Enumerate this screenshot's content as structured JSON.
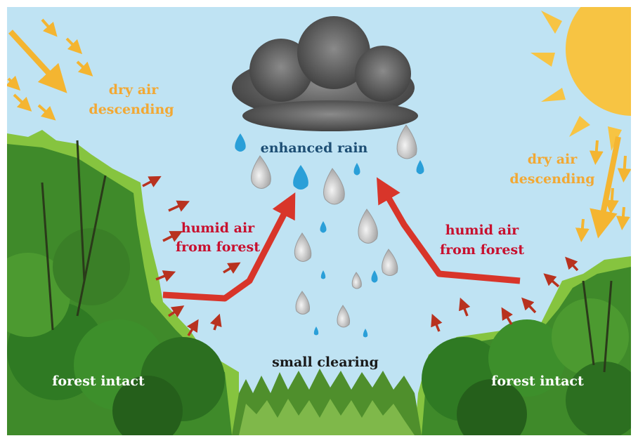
{
  "labels": {
    "dry_air_left": [
      "dry air",
      "descending"
    ],
    "dry_air_right": [
      "dry air",
      "descending"
    ],
    "enhanced_rain": "enhanced rain",
    "humid_air_left": [
      "humid air",
      "from forest"
    ],
    "humid_air_right": [
      "humid air",
      "from forest"
    ],
    "small_clearing": "small clearing",
    "forest_intact_left": "forest intact",
    "forest_intact_right": "forest intact"
  }
}
